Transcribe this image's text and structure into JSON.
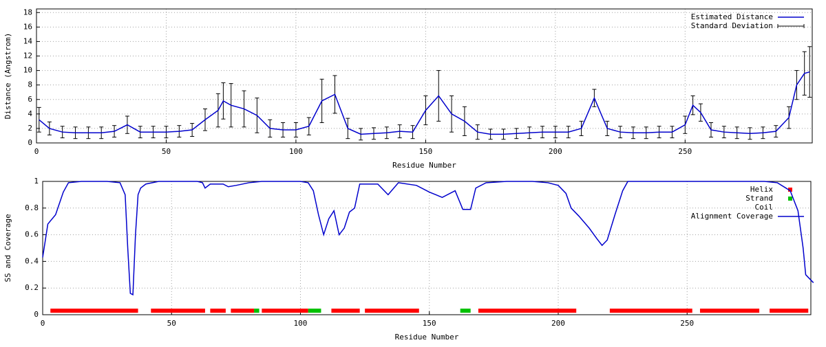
{
  "chart_data": [
    {
      "type": "errorline",
      "x_label": "Residue Number",
      "y_label": "Distance (Angstrom)",
      "xlim": [
        0,
        299
      ],
      "xticks": [
        0,
        50,
        100,
        150,
        200,
        250
      ],
      "ylim": [
        0,
        18.5
      ],
      "yticks": [
        0,
        2,
        4,
        6,
        8,
        10,
        12,
        14,
        16,
        18
      ],
      "grid": true,
      "legend": "top-right",
      "x": [
        1,
        5,
        10,
        15,
        20,
        25,
        30,
        35,
        40,
        45,
        50,
        55,
        60,
        65,
        70,
        72,
        75,
        80,
        85,
        90,
        95,
        100,
        105,
        110,
        115,
        120,
        125,
        130,
        135,
        140,
        145,
        150,
        155,
        160,
        165,
        170,
        175,
        180,
        185,
        190,
        195,
        200,
        205,
        210,
        215,
        220,
        225,
        230,
        235,
        240,
        245,
        250,
        253,
        256,
        260,
        265,
        270,
        275,
        280,
        285,
        290,
        293,
        296,
        298
      ],
      "series": [
        {
          "name": "Estimated Distance",
          "error_name": "Standard Deviation",
          "color": "#0000cc",
          "values": [
            3.2,
            2.0,
            1.5,
            1.4,
            1.4,
            1.4,
            1.6,
            2.5,
            1.5,
            1.5,
            1.5,
            1.6,
            1.8,
            3.2,
            4.5,
            5.8,
            5.2,
            4.7,
            3.8,
            2.0,
            1.8,
            1.8,
            2.3,
            5.8,
            6.7,
            2.0,
            1.2,
            1.3,
            1.4,
            1.6,
            1.5,
            4.5,
            6.5,
            4.0,
            3.0,
            1.5,
            1.2,
            1.2,
            1.3,
            1.4,
            1.5,
            1.5,
            1.5,
            2.0,
            6.2,
            2.0,
            1.5,
            1.4,
            1.4,
            1.5,
            1.5,
            2.5,
            5.2,
            4.2,
            1.8,
            1.5,
            1.4,
            1.3,
            1.4,
            1.6,
            3.5,
            8.0,
            9.6,
            9.8
          ],
          "errors": [
            1.7,
            0.9,
            0.8,
            0.8,
            0.8,
            0.8,
            0.8,
            1.2,
            0.8,
            0.8,
            0.8,
            0.8,
            0.9,
            1.5,
            2.3,
            2.5,
            3.0,
            2.5,
            2.4,
            1.2,
            1.0,
            1.0,
            1.2,
            3.0,
            2.6,
            1.4,
            0.8,
            0.8,
            0.8,
            0.9,
            0.9,
            2.0,
            3.5,
            2.5,
            2.0,
            1.0,
            0.7,
            0.7,
            0.7,
            0.8,
            0.8,
            0.8,
            0.8,
            1.0,
            1.2,
            1.0,
            0.8,
            0.8,
            0.8,
            0.8,
            0.8,
            1.2,
            1.3,
            1.2,
            1.0,
            0.8,
            0.8,
            0.8,
            0.8,
            0.8,
            1.5,
            2.0,
            3.0,
            3.5
          ]
        }
      ]
    },
    {
      "type": "line",
      "x_label": "Residue Number",
      "y_label": "SS and Coverage",
      "xlim": [
        0,
        298
      ],
      "xticks": [
        0,
        50,
        100,
        150,
        200,
        250
      ],
      "ylim": [
        0,
        1
      ],
      "yticks": [
        0,
        0.2,
        0.4,
        0.6,
        0.8,
        1
      ],
      "grid": true,
      "legend": "top-right",
      "x": [
        0,
        2,
        5,
        8,
        10,
        15,
        20,
        25,
        30,
        32,
        33,
        34,
        35,
        36,
        37,
        38,
        40,
        45,
        60,
        62,
        63,
        65,
        70,
        72,
        75,
        80,
        85,
        100,
        103,
        105,
        107,
        109,
        111,
        113,
        115,
        117,
        119,
        121,
        123,
        130,
        134,
        138,
        145,
        150,
        155,
        160,
        163,
        166,
        168,
        172,
        180,
        190,
        196,
        200,
        203,
        205,
        208,
        212,
        215,
        217,
        219,
        222,
        225,
        227,
        240,
        255,
        270,
        280,
        285,
        290,
        293,
        295,
        296,
        297,
        299
      ],
      "series": [
        {
          "name": "Alignment Coverage",
          "color": "#0000cc",
          "values": [
            0.43,
            0.68,
            0.75,
            0.92,
            0.99,
            1,
            1,
            1,
            0.99,
            0.9,
            0.5,
            0.16,
            0.15,
            0.6,
            0.9,
            0.95,
            0.98,
            1,
            1,
            0.99,
            0.95,
            0.98,
            0.98,
            0.96,
            0.97,
            0.99,
            1,
            1,
            0.99,
            0.93,
            0.75,
            0.6,
            0.72,
            0.78,
            0.6,
            0.65,
            0.77,
            0.8,
            0.98,
            0.98,
            0.9,
            0.99,
            0.97,
            0.92,
            0.88,
            0.93,
            0.79,
            0.79,
            0.95,
            0.99,
            1,
            1,
            0.99,
            0.97,
            0.91,
            0.8,
            0.74,
            0.65,
            0.57,
            0.52,
            0.56,
            0.75,
            0.93,
            1,
            1,
            1,
            1,
            1,
            0.99,
            0.93,
            0.78,
            0.5,
            0.3,
            0.28,
            0.24
          ]
        }
      ],
      "secondary_structure": [
        {
          "name": "Helix",
          "color": "#ff0000",
          "level": 0.03,
          "segments": [
            [
              3,
              37
            ],
            [
              42,
              63
            ],
            [
              65,
              71
            ],
            [
              73,
              82
            ],
            [
              85,
              103
            ],
            [
              112,
              123
            ],
            [
              125,
              146
            ],
            [
              169,
              207
            ],
            [
              220,
              252
            ],
            [
              255,
              278
            ],
            [
              282,
              297
            ]
          ]
        },
        {
          "name": "Strand",
          "color": "#00c000",
          "level": 0.03,
          "segments": [
            [
              82,
              84
            ],
            [
              103,
              108
            ],
            [
              162,
              166
            ]
          ]
        },
        {
          "name": "Coil"
        }
      ]
    }
  ]
}
